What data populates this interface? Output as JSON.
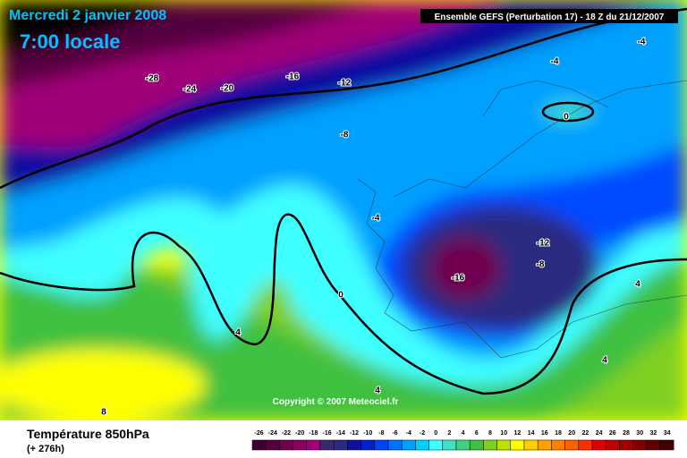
{
  "header": {
    "date": "Mercredi 2 janvier 2008",
    "time": "7:00 locale",
    "model": "Ensemble GEFS (Perturbation 17)  -  18 Z du 21/12/2007"
  },
  "map": {
    "contour_labels": [
      "-28",
      "-24",
      "-20",
      "-16",
      "-12",
      "-8",
      "-4",
      "-4",
      "0",
      "-4",
      "-12",
      "-8",
      "-16",
      "0",
      "4",
      "4",
      "4",
      "4",
      "8"
    ],
    "copyright": "Copyright © 2007 Meteociel.fr"
  },
  "footer": {
    "variable": "Température 850hPa",
    "lead": "(+ 276h)"
  },
  "colorbar": {
    "ticks": [
      -26,
      -24,
      -22,
      -20,
      -18,
      -16,
      -14,
      -12,
      -10,
      -8,
      -6,
      -4,
      -2,
      0,
      2,
      4,
      6,
      8,
      10,
      12,
      14,
      16,
      18,
      20,
      22,
      24,
      26,
      28,
      30,
      32,
      34
    ],
    "colors": [
      "#3a0030",
      "#55003f",
      "#70004e",
      "#8a0060",
      "#a00077",
      "#3b2a6a",
      "#2a2a80",
      "#1010a0",
      "#0020d0",
      "#0040ff",
      "#0070ff",
      "#00a0ff",
      "#00d0ff",
      "#40ffff",
      "#40e0c0",
      "#40d080",
      "#40c040",
      "#80d020",
      "#c0e000",
      "#ffff00",
      "#ffd000",
      "#ffa000",
      "#ff8000",
      "#ff6000",
      "#ff3000",
      "#e00000",
      "#c00000",
      "#a00000",
      "#800000",
      "#600000",
      "#400000"
    ]
  }
}
